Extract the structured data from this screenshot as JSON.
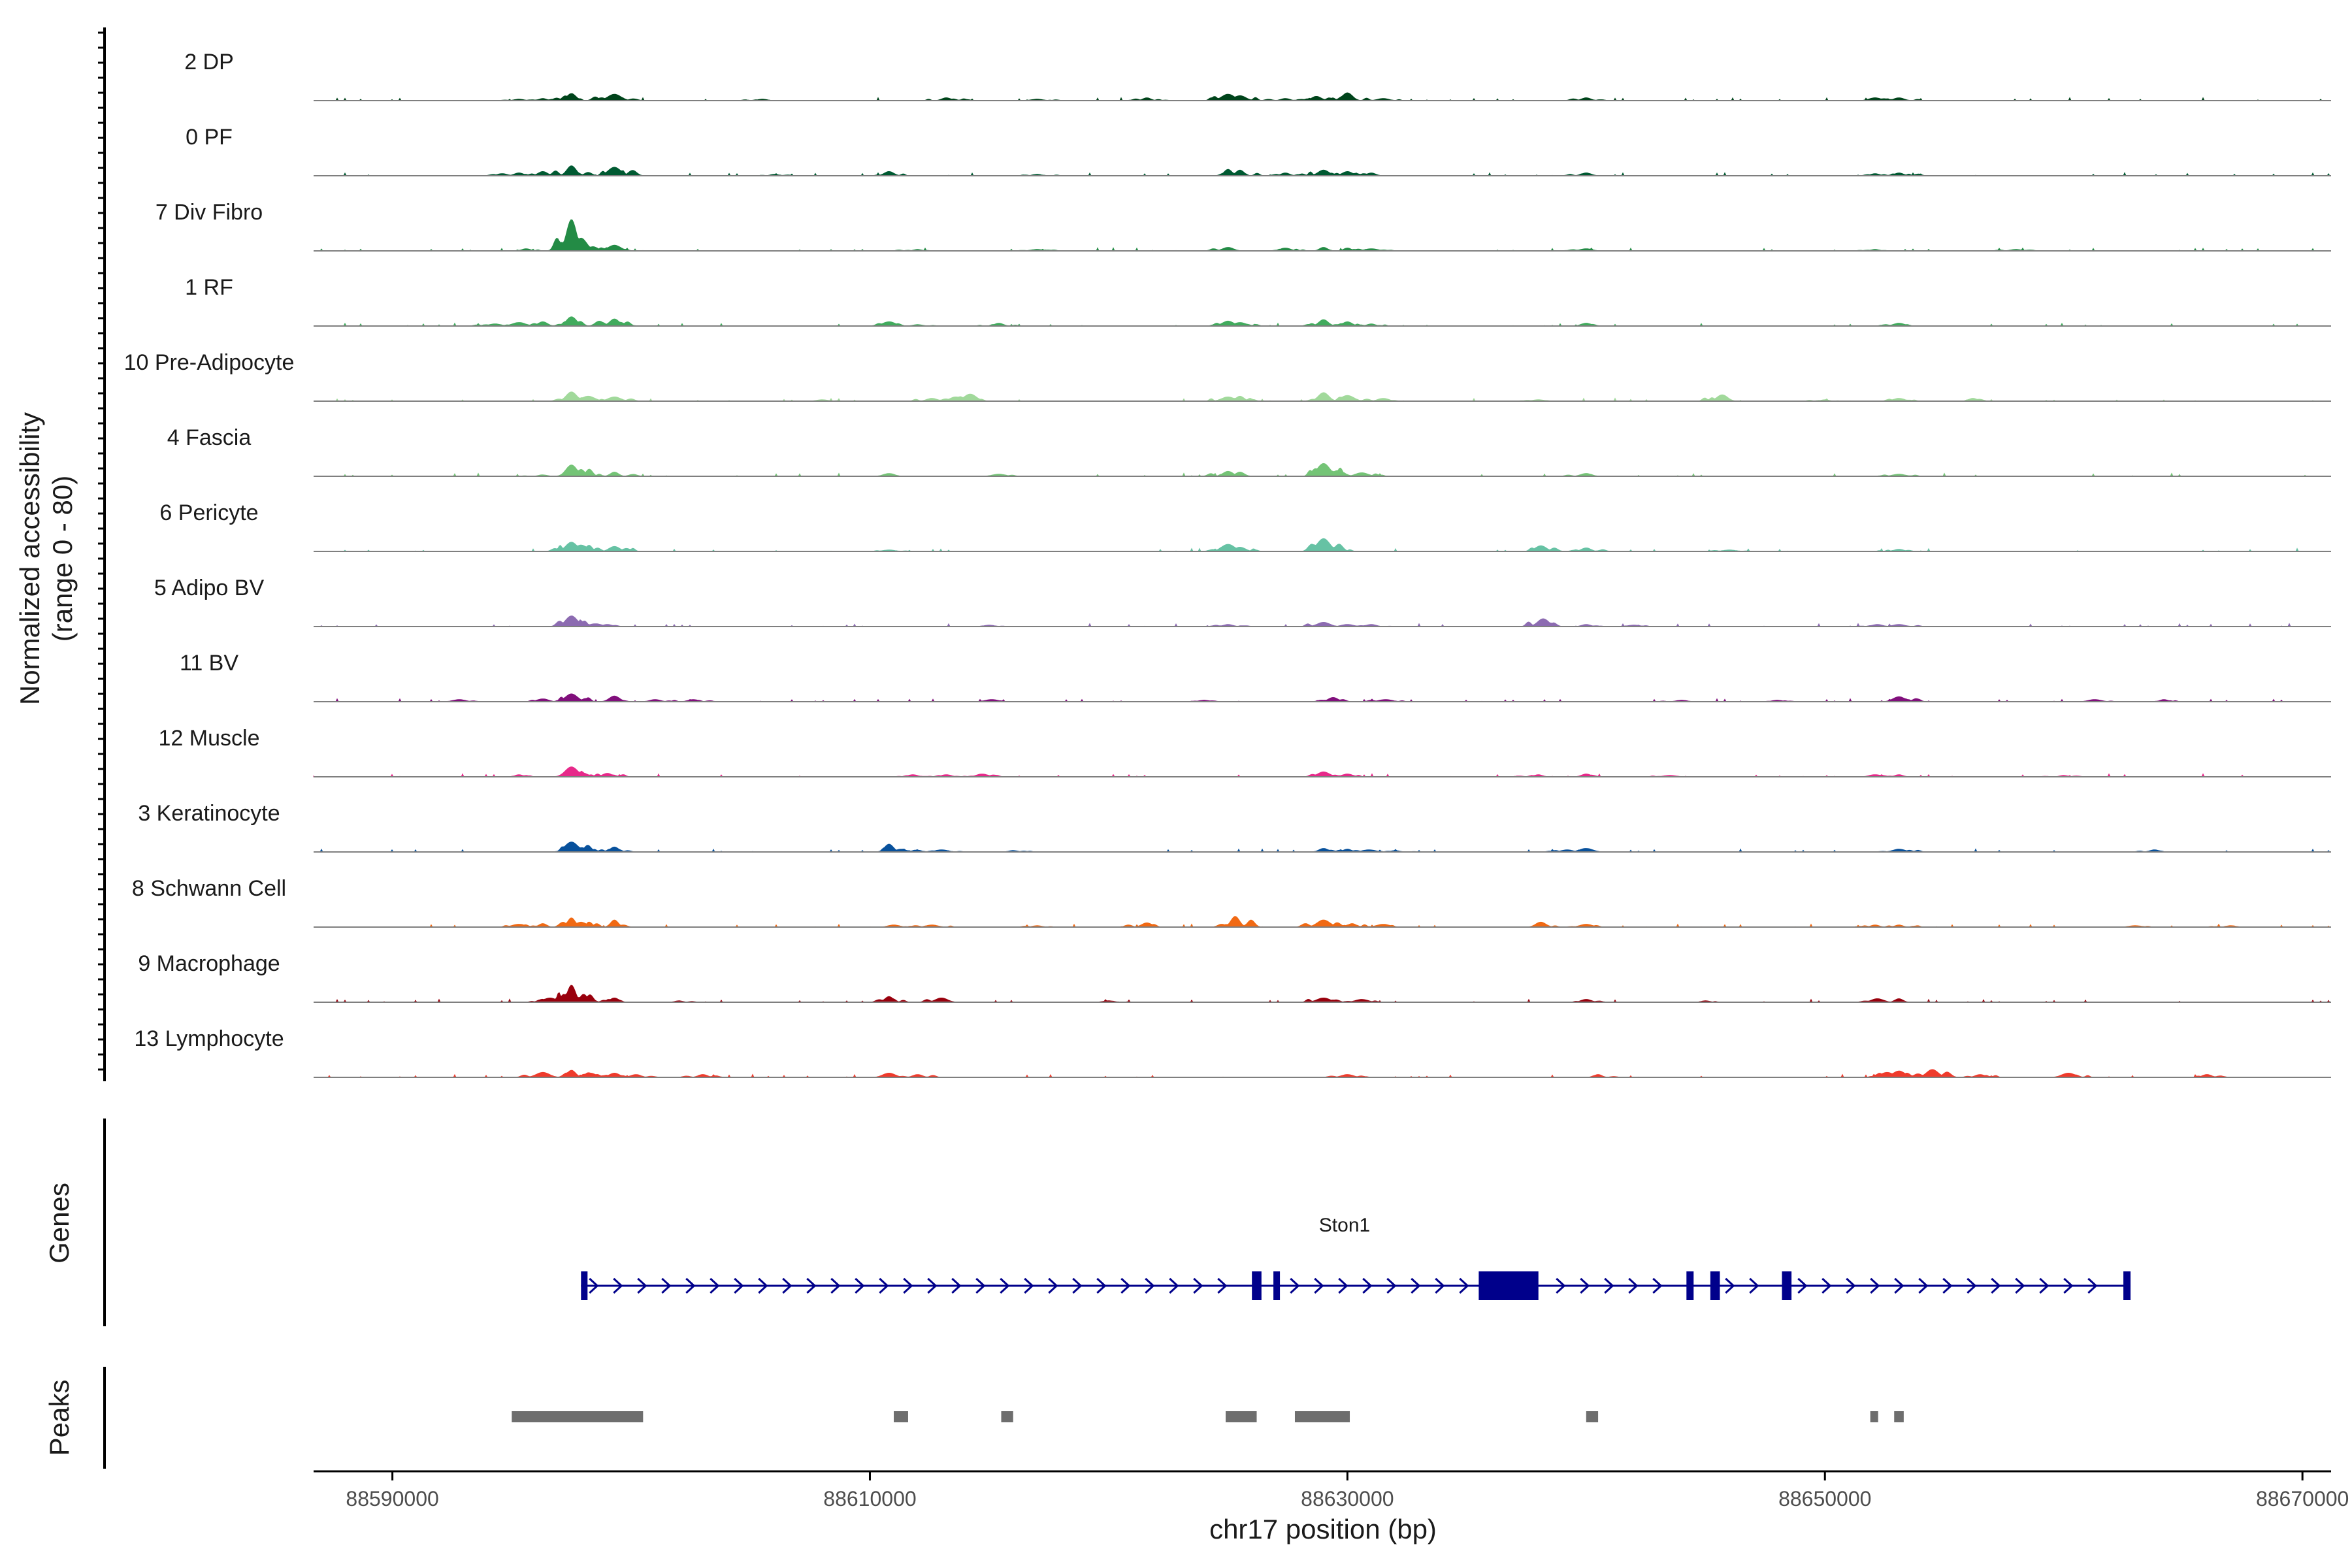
{
  "chart_data": {
    "type": "coverage_tracks",
    "ylabel_line1": "Normalized accessibility",
    "ylabel_line2": "(range 0 - 80)",
    "y_range": [
      0,
      80
    ],
    "xlabel": "chr17 position (bp)",
    "x_range": [
      88586700,
      88671200
    ],
    "x_ticks": [
      88590000,
      88610000,
      88630000,
      88650000,
      88670000
    ],
    "x_tick_labels": [
      "88590000",
      "88610000",
      "88630000",
      "88650000",
      "88670000"
    ],
    "tracks": [
      {
        "name": "2 DP",
        "color": "#00441b",
        "peaks": [
          [
            88597500,
            10
          ],
          [
            88599300,
            9
          ],
          [
            88596300,
            3
          ],
          [
            88595300,
            2
          ],
          [
            88613200,
            4
          ],
          [
            88621600,
            4
          ],
          [
            88625000,
            9
          ],
          [
            88625500,
            7
          ],
          [
            88628700,
            6
          ],
          [
            88630000,
            11
          ],
          [
            88631500,
            3
          ],
          [
            88627400,
            3
          ],
          [
            88640000,
            4
          ],
          [
            88652100,
            4
          ],
          [
            88653100,
            4
          ],
          [
            88605500,
            2
          ],
          [
            88617000,
            2
          ]
        ]
      },
      {
        "name": "0 PF",
        "color": "#005a32",
        "peaks": [
          [
            88597500,
            14
          ],
          [
            88599300,
            12
          ],
          [
            88596300,
            6
          ],
          [
            88595300,
            4
          ],
          [
            88594600,
            3
          ],
          [
            88610800,
            6
          ],
          [
            88625000,
            9
          ],
          [
            88625500,
            8
          ],
          [
            88627400,
            4
          ],
          [
            88629000,
            8
          ],
          [
            88630000,
            6
          ],
          [
            88631000,
            4
          ],
          [
            88640000,
            4
          ],
          [
            88652100,
            3
          ],
          [
            88653100,
            4
          ],
          [
            88606000,
            2
          ],
          [
            88617000,
            2
          ]
        ]
      },
      {
        "name": "7 Div Fibro",
        "color": "#238b45",
        "peaks": [
          [
            88597500,
            44
          ],
          [
            88597900,
            18
          ],
          [
            88599300,
            8
          ],
          [
            88598400,
            6
          ],
          [
            88595600,
            3
          ],
          [
            88625000,
            5
          ],
          [
            88627400,
            4
          ],
          [
            88629000,
            5
          ],
          [
            88630000,
            4
          ],
          [
            88631000,
            3
          ],
          [
            88640000,
            3
          ],
          [
            88658000,
            2
          ],
          [
            88652100,
            2
          ],
          [
            88612000,
            2
          ],
          [
            88617000,
            2
          ]
        ]
      },
      {
        "name": "1 RF",
        "color": "#41ab5d",
        "peaks": [
          [
            88597500,
            13
          ],
          [
            88599300,
            10
          ],
          [
            88596300,
            6
          ],
          [
            88595300,
            5
          ],
          [
            88594300,
            3
          ],
          [
            88610800,
            6
          ],
          [
            88615400,
            4
          ],
          [
            88625000,
            7
          ],
          [
            88625500,
            5
          ],
          [
            88629000,
            9
          ],
          [
            88630000,
            6
          ],
          [
            88631000,
            3
          ],
          [
            88640000,
            4
          ],
          [
            88653100,
            4
          ],
          [
            88612000,
            2
          ]
        ]
      },
      {
        "name": "10 Pre-Adipocyte",
        "color": "#a1d99b",
        "peaks": [
          [
            88597500,
            13
          ],
          [
            88598200,
            7
          ],
          [
            88599300,
            6
          ],
          [
            88612600,
            4
          ],
          [
            88613600,
            6
          ],
          [
            88614200,
            10
          ],
          [
            88625000,
            6
          ],
          [
            88625500,
            7
          ],
          [
            88629000,
            12
          ],
          [
            88630000,
            8
          ],
          [
            88631500,
            4
          ],
          [
            88645700,
            9
          ],
          [
            88653100,
            4
          ],
          [
            88656200,
            4
          ],
          [
            88608000,
            2
          ],
          [
            88638000,
            2
          ],
          [
            88650000,
            2
          ]
        ]
      },
      {
        "name": "4 Fascia",
        "color": "#74c476",
        "peaks": [
          [
            88597500,
            16
          ],
          [
            88599300,
            6
          ],
          [
            88598200,
            5
          ],
          [
            88610800,
            4
          ],
          [
            88615400,
            3
          ],
          [
            88625000,
            7
          ],
          [
            88625500,
            6
          ],
          [
            88629000,
            18
          ],
          [
            88629600,
            8
          ],
          [
            88630600,
            5
          ],
          [
            88640000,
            4
          ],
          [
            88653100,
            3
          ],
          [
            88596300,
            2
          ]
        ]
      },
      {
        "name": "6 Pericyte",
        "color": "#66c2a4",
        "peaks": [
          [
            88597500,
            13
          ],
          [
            88597900,
            9
          ],
          [
            88599300,
            7
          ],
          [
            88625000,
            10
          ],
          [
            88625500,
            6
          ],
          [
            88629000,
            18
          ],
          [
            88629500,
            6
          ],
          [
            88638100,
            8
          ],
          [
            88640000,
            5
          ],
          [
            88653100,
            3
          ],
          [
            88610800,
            2
          ],
          [
            88646000,
            2
          ]
        ]
      },
      {
        "name": "5 Adipo BV",
        "color": "#8c6bb1",
        "peaks": [
          [
            88597500,
            15
          ],
          [
            88597900,
            7
          ],
          [
            88598500,
            4
          ],
          [
            88599000,
            3
          ],
          [
            88625000,
            3
          ],
          [
            88629000,
            6
          ],
          [
            88630000,
            3
          ],
          [
            88631000,
            3
          ],
          [
            88638200,
            11
          ],
          [
            88640000,
            3
          ],
          [
            88642000,
            2
          ],
          [
            88652200,
            3
          ],
          [
            88653100,
            3
          ],
          [
            88615000,
            2
          ]
        ]
      },
      {
        "name": "11 BV",
        "color": "#810f7c",
        "peaks": [
          [
            88597500,
            11
          ],
          [
            88599300,
            8
          ],
          [
            88592800,
            3
          ],
          [
            88596300,
            4
          ],
          [
            88601000,
            3
          ],
          [
            88602600,
            3
          ],
          [
            88615100,
            3
          ],
          [
            88629400,
            6
          ],
          [
            88631600,
            3
          ],
          [
            88653100,
            7
          ],
          [
            88661300,
            3
          ],
          [
            88664200,
            3
          ],
          [
            88624000,
            2
          ],
          [
            88644000,
            2
          ],
          [
            88648000,
            2
          ]
        ]
      },
      {
        "name": "12 Muscle",
        "color": "#e7298a",
        "peaks": [
          [
            88597500,
            14
          ],
          [
            88597900,
            6
          ],
          [
            88599000,
            5
          ],
          [
            88595300,
            3
          ],
          [
            88614700,
            4
          ],
          [
            88613200,
            3
          ],
          [
            88611800,
            3
          ],
          [
            88629000,
            7
          ],
          [
            88630000,
            4
          ],
          [
            88638000,
            3
          ],
          [
            88640000,
            4
          ],
          [
            88652100,
            3
          ],
          [
            88653100,
            3
          ],
          [
            88643500,
            2
          ],
          [
            88660000,
            2
          ]
        ]
      },
      {
        "name": "3 Keratinocyte",
        "color": "#08519c",
        "peaks": [
          [
            88597500,
            14
          ],
          [
            88597900,
            6
          ],
          [
            88599300,
            7
          ],
          [
            88610800,
            11
          ],
          [
            88611300,
            4
          ],
          [
            88613000,
            3
          ],
          [
            88629000,
            5
          ],
          [
            88630000,
            4
          ],
          [
            88630900,
            3
          ],
          [
            88640000,
            5
          ],
          [
            88639200,
            3
          ],
          [
            88653100,
            4
          ],
          [
            88663800,
            3
          ],
          [
            88616000,
            2
          ],
          [
            88632000,
            2
          ]
        ]
      },
      {
        "name": "8 Schwann Cell",
        "color": "#f16913",
        "peaks": [
          [
            88597500,
            13
          ],
          [
            88597900,
            7
          ],
          [
            88599300,
            10
          ],
          [
            88596300,
            5
          ],
          [
            88595300,
            4
          ],
          [
            88611000,
            3
          ],
          [
            88612600,
            3
          ],
          [
            88621600,
            6
          ],
          [
            88625300,
            15
          ],
          [
            88629000,
            10
          ],
          [
            88630200,
            5
          ],
          [
            88631500,
            4
          ],
          [
            88638100,
            7
          ],
          [
            88640000,
            4
          ],
          [
            88652100,
            3
          ],
          [
            88653100,
            3
          ],
          [
            88617000,
            2
          ],
          [
            88663000,
            2
          ],
          [
            88667000,
            2
          ]
        ]
      },
      {
        "name": "9 Macrophage",
        "color": "#99000d",
        "peaks": [
          [
            88597500,
            24
          ],
          [
            88597100,
            9
          ],
          [
            88597900,
            7
          ],
          [
            88596600,
            6
          ],
          [
            88599300,
            6
          ],
          [
            88610800,
            8
          ],
          [
            88613000,
            6
          ],
          [
            88629000,
            6
          ],
          [
            88630600,
            4
          ],
          [
            88640000,
            4
          ],
          [
            88652200,
            5
          ],
          [
            88653100,
            5
          ],
          [
            88620000,
            2
          ],
          [
            88645000,
            2
          ],
          [
            88602000,
            2
          ]
        ]
      },
      {
        "name": "13 Lymphocyte",
        "color": "#ef3b2c",
        "peaks": [
          [
            88597500,
            10
          ],
          [
            88596300,
            7
          ],
          [
            88598300,
            6
          ],
          [
            88599300,
            6
          ],
          [
            88600200,
            4
          ],
          [
            88603000,
            4
          ],
          [
            88610800,
            6
          ],
          [
            88612000,
            4
          ],
          [
            88630000,
            4
          ],
          [
            88640500,
            4
          ],
          [
            88652600,
            7
          ],
          [
            88653100,
            9
          ],
          [
            88653900,
            5
          ],
          [
            88654500,
            11
          ],
          [
            88656500,
            4
          ],
          [
            88660200,
            6
          ],
          [
            88666000,
            4
          ]
        ]
      }
    ],
    "genes_label": "Genes",
    "gene": {
      "name": "Ston1",
      "start": 88597900,
      "end": 88662800,
      "strand": "+",
      "exons": [
        [
          88597900,
          88598000
        ],
        [
          88626000,
          88626400
        ],
        [
          88626900,
          88627100
        ],
        [
          88635500,
          88638000
        ],
        [
          88644200,
          88644500
        ],
        [
          88645200,
          88645600
        ],
        [
          88648200,
          88648600
        ],
        [
          88662500,
          88662800
        ]
      ],
      "color": "#00008b"
    },
    "peaks_label": "Peaks",
    "peak_regions": [
      [
        88595000,
        88600500
      ],
      [
        88611000,
        88611600
      ],
      [
        88615500,
        88616000
      ],
      [
        88624900,
        88626200
      ],
      [
        88627800,
        88630100
      ],
      [
        88640000,
        88640500
      ],
      [
        88651900,
        88652200
      ],
      [
        88652900,
        88653300
      ]
    ],
    "peak_color": "#6e6e6e"
  }
}
